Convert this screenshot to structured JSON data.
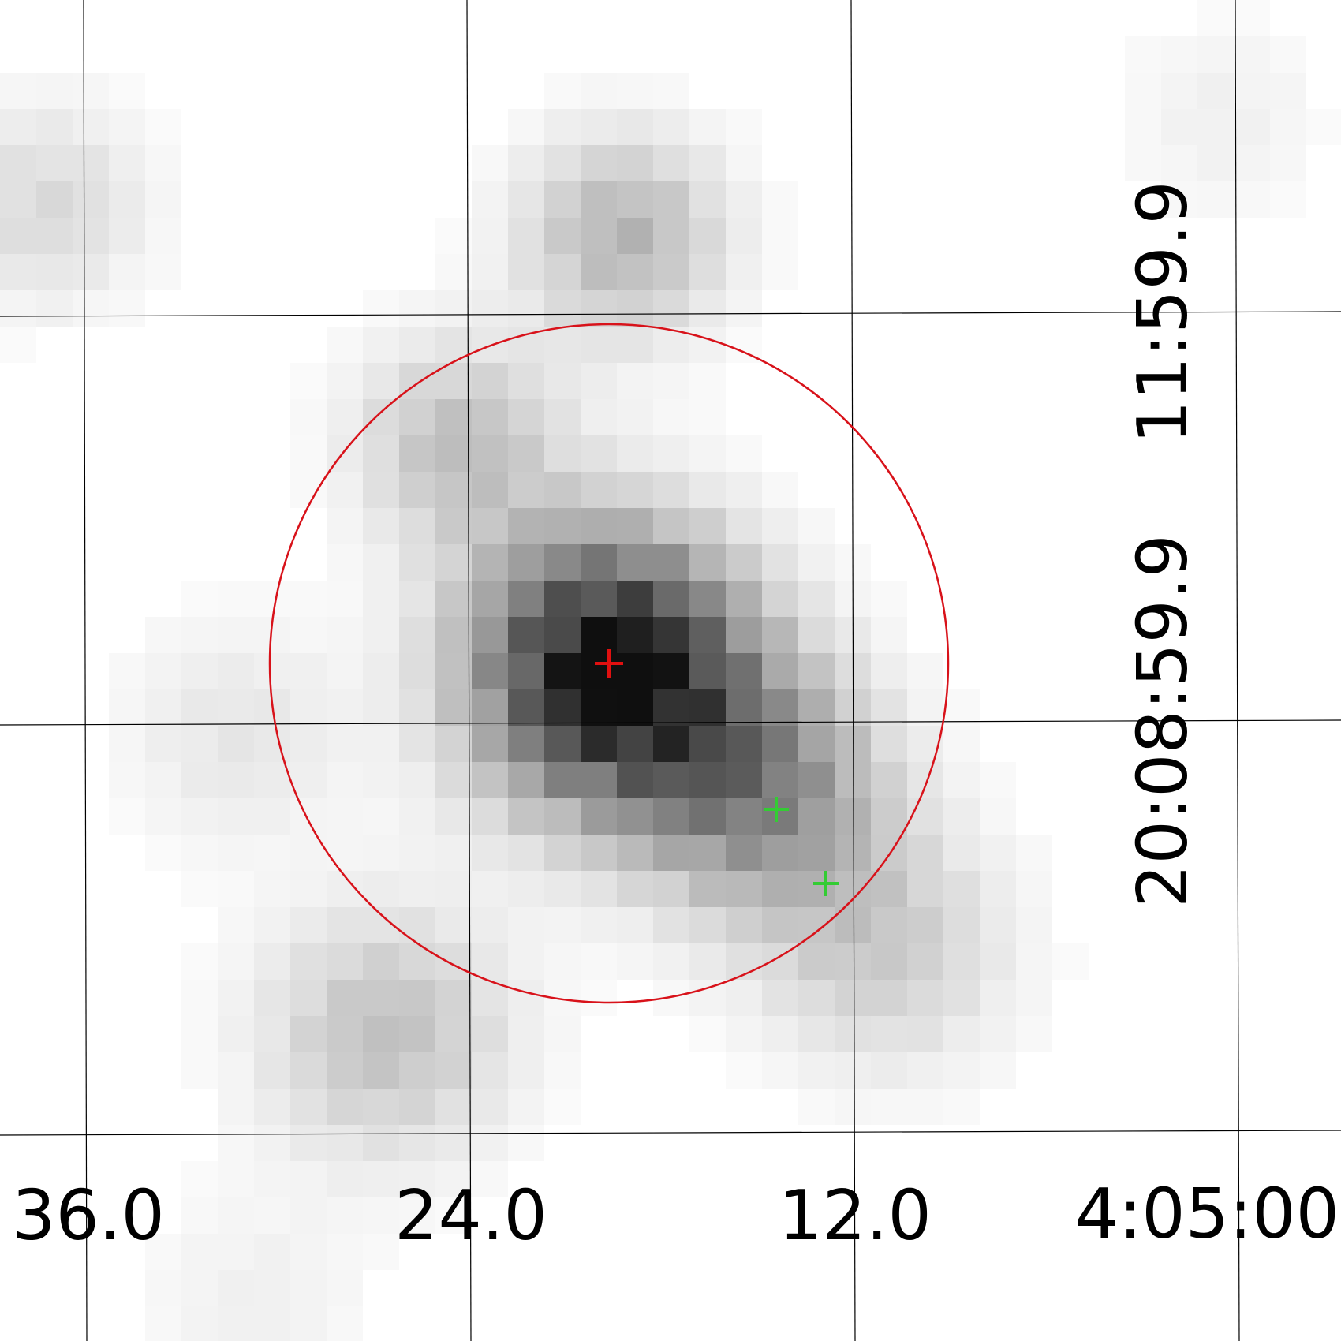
{
  "image": {
    "ra_labels": [
      "36.0",
      "24.0",
      "12.0",
      "4:05:00"
    ],
    "dec_labels": [
      "11:59.9",
      "20:08:59.9"
    ]
  }
}
